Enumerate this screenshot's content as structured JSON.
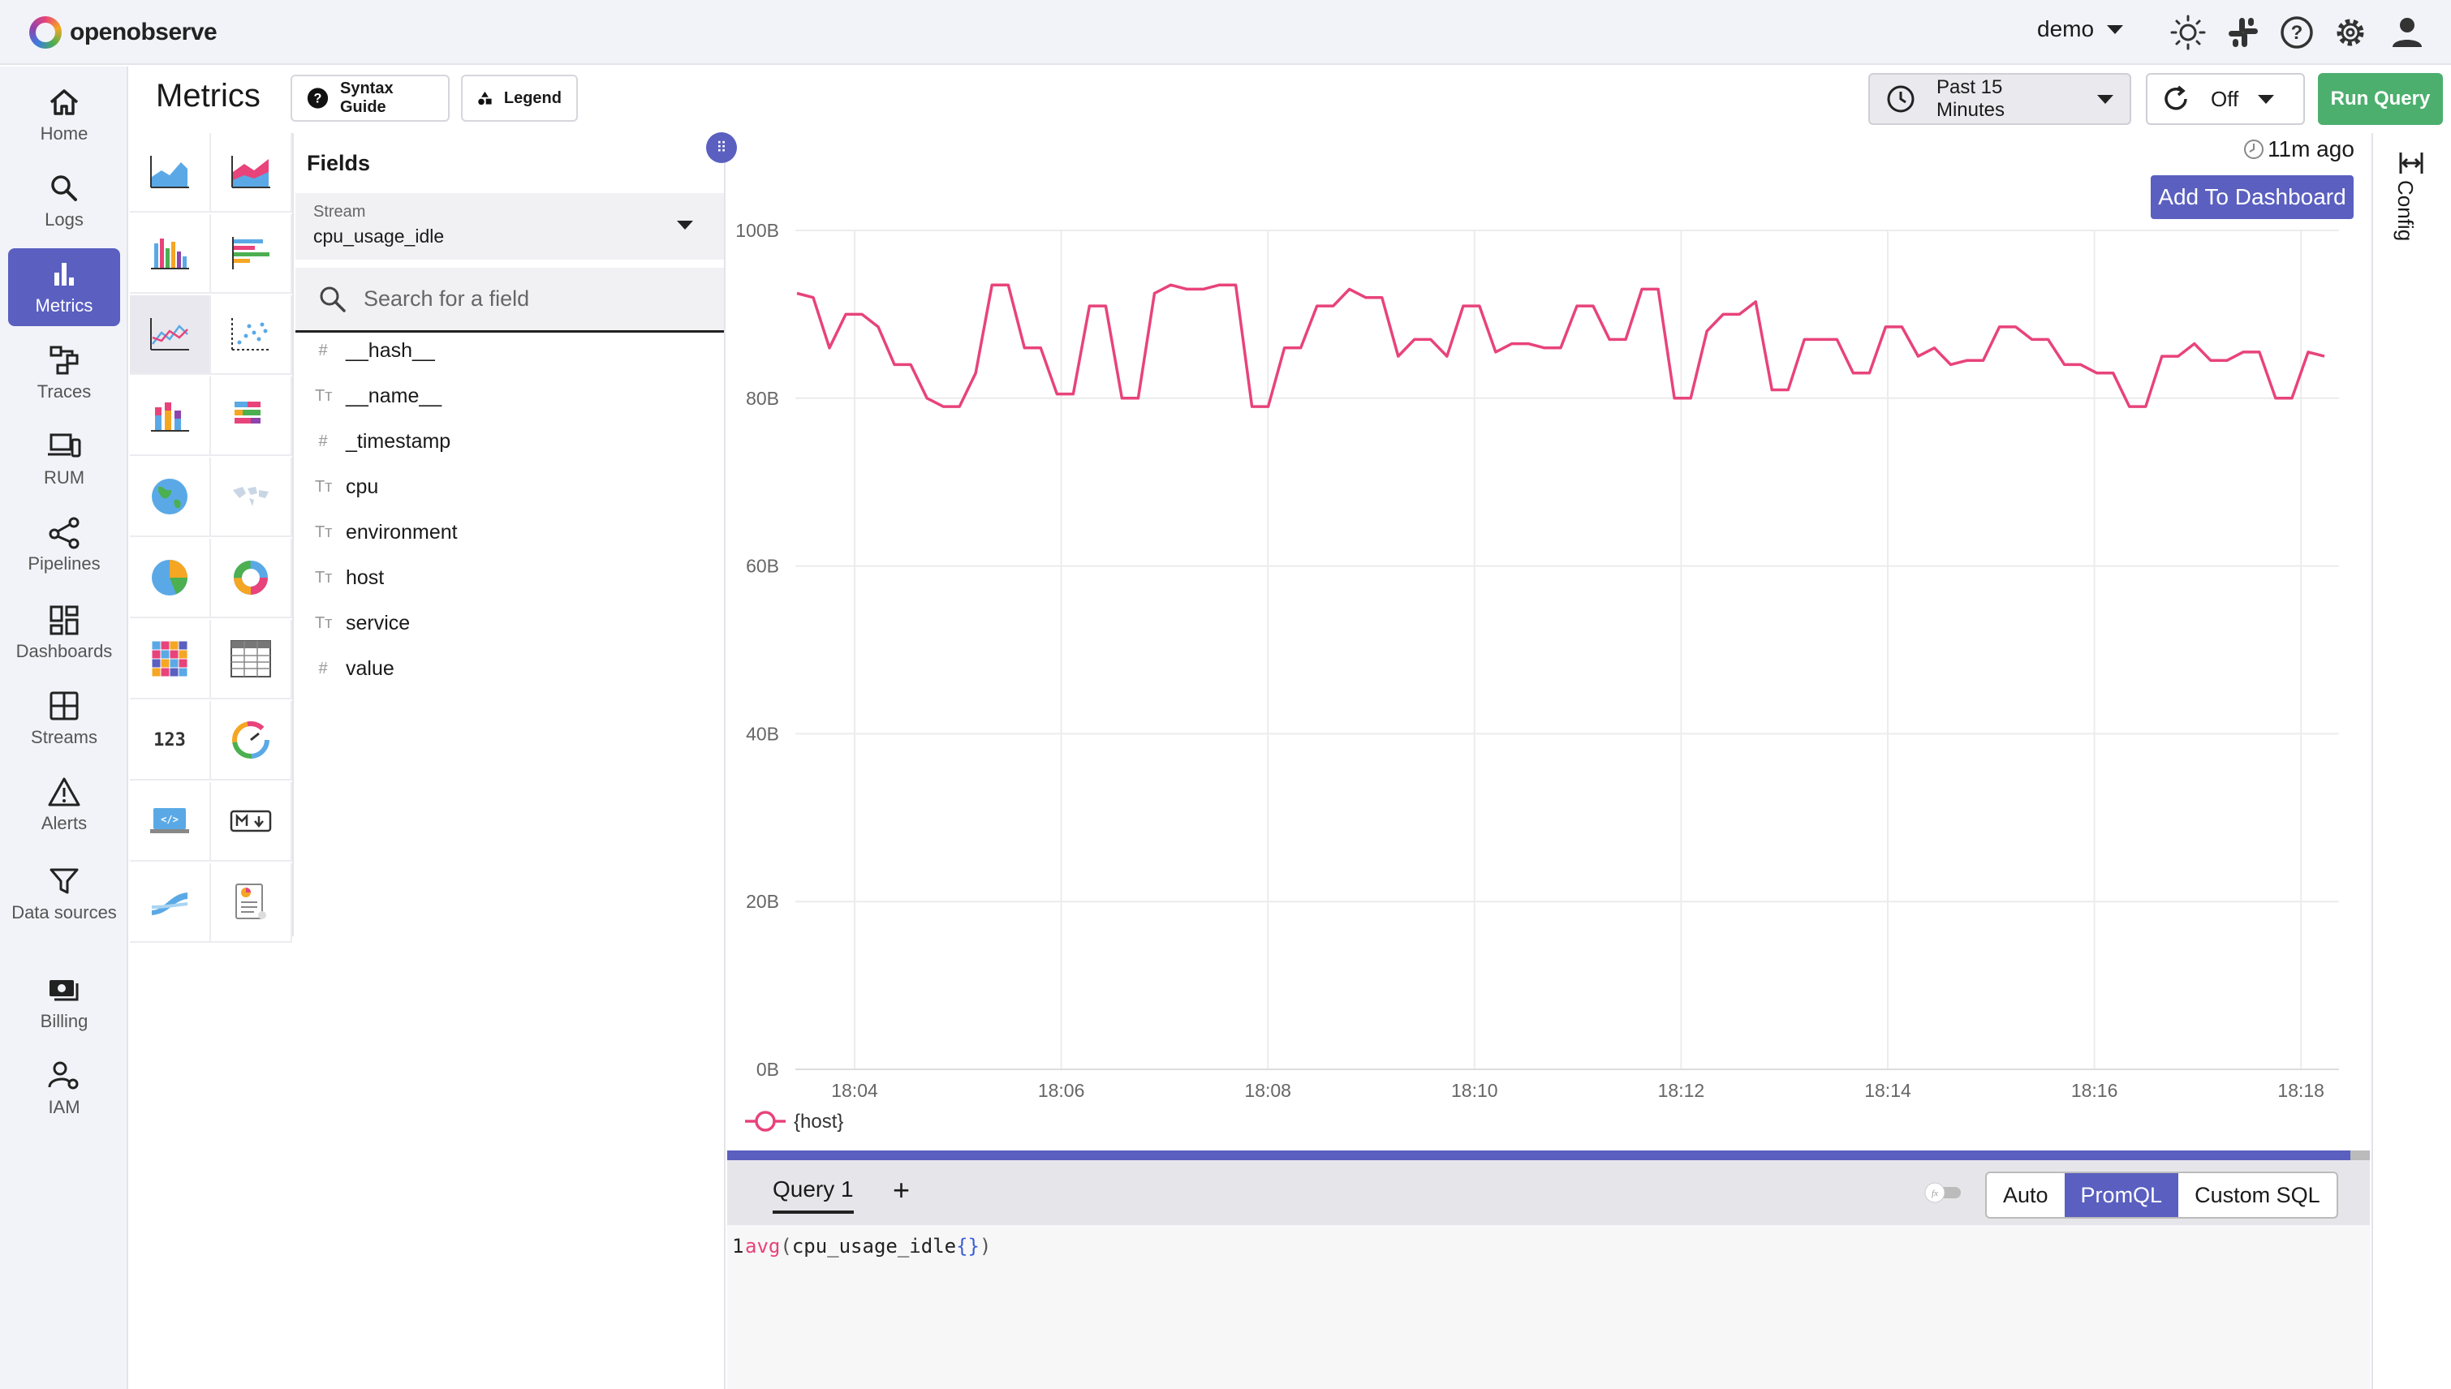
{
  "app": {
    "brand": "openobserve"
  },
  "header": {
    "org": "demo",
    "icons": [
      "theme-icon",
      "slack-icon",
      "help-icon",
      "settings-icon",
      "user-icon"
    ]
  },
  "sidebar": {
    "items": [
      {
        "label": "Home",
        "icon": "home-icon"
      },
      {
        "label": "Logs",
        "icon": "search-icon"
      },
      {
        "label": "Metrics",
        "icon": "bar-chart-icon",
        "active": true
      },
      {
        "label": "Traces",
        "icon": "traces-icon"
      },
      {
        "label": "RUM",
        "icon": "devices-icon"
      },
      {
        "label": "Pipelines",
        "icon": "pipeline-icon"
      },
      {
        "label": "Dashboards",
        "icon": "dashboard-icon"
      },
      {
        "label": "Streams",
        "icon": "streams-icon"
      },
      {
        "label": "Alerts",
        "icon": "alert-icon"
      },
      {
        "label": "Data sources",
        "icon": "filter-icon"
      },
      {
        "label": "Billing",
        "icon": "billing-icon"
      },
      {
        "label": "IAM",
        "icon": "iam-icon"
      }
    ]
  },
  "toolbar": {
    "title": "Metrics",
    "syntax_guide": "Syntax Guide",
    "legend": "Legend",
    "time_range": "Past 15 Minutes",
    "refresh": "Off",
    "run_query": "Run Query"
  },
  "fields_panel": {
    "title": "Fields",
    "stream_label": "Stream",
    "stream_value": "cpu_usage_idle",
    "search_placeholder": "Search for a field",
    "fields": [
      {
        "type": "#",
        "name": "__hash__"
      },
      {
        "type": "Tт",
        "name": "__name__"
      },
      {
        "type": "#",
        "name": "_timestamp"
      },
      {
        "type": "Tт",
        "name": "cpu"
      },
      {
        "type": "Tт",
        "name": "environment"
      },
      {
        "type": "Tт",
        "name": "host"
      },
      {
        "type": "Tт",
        "name": "service"
      },
      {
        "type": "#",
        "name": "value"
      }
    ]
  },
  "chart_header": {
    "last_updated": "11m ago",
    "add_to_dashboard": "Add To Dashboard",
    "config": "Config"
  },
  "chart_data": {
    "type": "line",
    "x_ticks": [
      "18:04",
      "18:06",
      "18:08",
      "18:10",
      "18:12",
      "18:14",
      "18:16",
      "18:18"
    ],
    "y_ticks": [
      "0B",
      "20B",
      "40B",
      "60B",
      "80B",
      "100B"
    ],
    "ylim": [
      0,
      100
    ],
    "legend_position": "bottom-left",
    "color": "#e8437a",
    "series": [
      {
        "name": "{host}",
        "values": [
          92.5,
          92,
          86,
          90,
          90,
          88.5,
          84,
          84,
          80,
          79,
          79,
          83,
          93.5,
          93.5,
          86,
          86,
          80.5,
          80.5,
          91,
          91,
          80,
          80,
          92.5,
          93.5,
          93,
          93,
          93.5,
          93.5,
          79,
          79,
          86,
          86,
          91,
          91,
          93,
          92,
          92,
          85,
          87,
          87,
          85,
          91,
          91,
          85.5,
          86.5,
          86.5,
          86,
          86,
          91,
          91,
          87,
          87,
          93,
          93,
          80,
          80,
          88,
          90,
          90,
          91.5,
          81,
          81,
          87,
          87,
          87,
          83,
          83,
          88.5,
          88.5,
          85,
          86,
          84,
          84.5,
          84.5,
          88.5,
          88.5,
          87,
          87,
          84,
          84,
          83,
          83,
          79,
          79,
          85,
          85,
          86.5,
          84.5,
          84.5,
          85.5,
          85.5,
          80,
          80,
          85.5,
          85
        ]
      }
    ]
  },
  "query": {
    "tab": "Query 1",
    "add": "+",
    "modes": [
      "Auto",
      "PromQL",
      "Custom SQL"
    ],
    "active_mode": "PromQL",
    "line_no": "1",
    "code_fn": "avg",
    "code_open": "(",
    "code_metric": "cpu_usage_idle",
    "code_braces": "{}",
    "code_close": ")"
  }
}
